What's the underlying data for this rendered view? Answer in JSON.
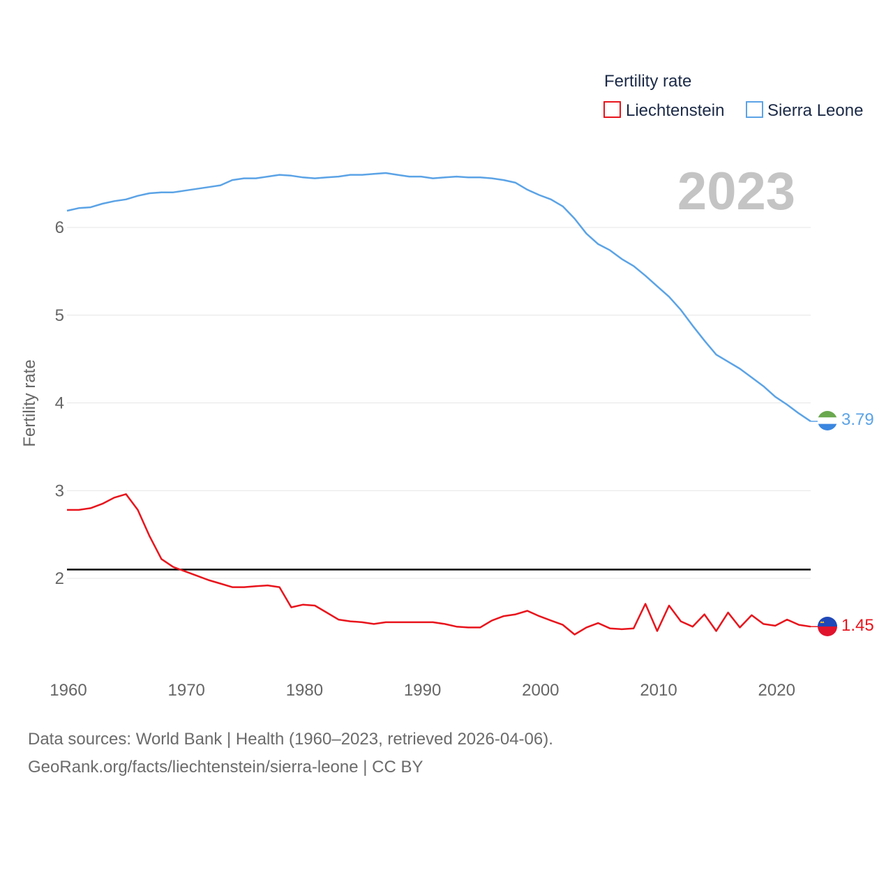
{
  "chart_data": {
    "type": "line",
    "title": "",
    "xlabel": "",
    "ylabel": "Fertility rate",
    "xlim": [
      1960,
      2023
    ],
    "ylim": [
      1.0,
      7.0
    ],
    "yticks": [
      2,
      3,
      4,
      5,
      6
    ],
    "xticks": [
      1960,
      1970,
      1980,
      1990,
      2000,
      2010,
      2020
    ],
    "year_label": "2023",
    "legend": {
      "title": "Fertility rate",
      "position": "top-right"
    },
    "reference_line": {
      "y": 2.1,
      "color": "#000000"
    },
    "x": [
      1960,
      1961,
      1962,
      1963,
      1964,
      1965,
      1966,
      1967,
      1968,
      1969,
      1970,
      1971,
      1972,
      1973,
      1974,
      1975,
      1976,
      1977,
      1978,
      1979,
      1980,
      1981,
      1982,
      1983,
      1984,
      1985,
      1986,
      1987,
      1988,
      1989,
      1990,
      1991,
      1992,
      1993,
      1994,
      1995,
      1996,
      1997,
      1998,
      1999,
      2000,
      2001,
      2002,
      2003,
      2004,
      2005,
      2006,
      2007,
      2008,
      2009,
      2010,
      2011,
      2012,
      2013,
      2014,
      2015,
      2016,
      2017,
      2018,
      2019,
      2020,
      2021,
      2022,
      2023
    ],
    "series": [
      {
        "name": "Liechtenstein",
        "color": "#e8141c",
        "end_label": "1.45",
        "values": [
          2.78,
          2.78,
          2.8,
          2.85,
          2.92,
          2.96,
          2.78,
          2.48,
          2.22,
          2.13,
          2.08,
          2.03,
          1.98,
          1.94,
          1.9,
          1.9,
          1.91,
          1.92,
          1.9,
          1.67,
          1.7,
          1.69,
          1.61,
          1.53,
          1.51,
          1.5,
          1.48,
          1.5,
          1.5,
          1.5,
          1.5,
          1.5,
          1.48,
          1.45,
          1.44,
          1.44,
          1.52,
          1.57,
          1.59,
          1.63,
          1.57,
          1.52,
          1.47,
          1.36,
          1.44,
          1.49,
          1.43,
          1.42,
          1.43,
          1.71,
          1.4,
          1.69,
          1.51,
          1.45,
          1.59,
          1.4,
          1.61,
          1.44,
          1.58,
          1.48,
          1.46,
          1.53,
          1.47,
          1.45
        ]
      },
      {
        "name": "Sierra Leone",
        "color": "#5ba3e6",
        "end_label": "3.79",
        "values": [
          6.19,
          6.22,
          6.23,
          6.27,
          6.3,
          6.32,
          6.36,
          6.39,
          6.4,
          6.4,
          6.42,
          6.44,
          6.46,
          6.48,
          6.54,
          6.56,
          6.56,
          6.58,
          6.6,
          6.59,
          6.57,
          6.56,
          6.57,
          6.58,
          6.6,
          6.6,
          6.61,
          6.62,
          6.6,
          6.58,
          6.58,
          6.56,
          6.57,
          6.58,
          6.57,
          6.57,
          6.56,
          6.54,
          6.51,
          6.43,
          6.37,
          6.32,
          6.24,
          6.1,
          5.93,
          5.81,
          5.74,
          5.64,
          5.56,
          5.45,
          5.33,
          5.21,
          5.06,
          4.88,
          4.71,
          4.55,
          4.47,
          4.39,
          4.29,
          4.19,
          4.07,
          3.98,
          3.88,
          3.79
        ]
      }
    ]
  },
  "footer": {
    "line1": "Data sources: World Bank | Health (1960–2023, retrieved 2026-04-06).",
    "line2": "GeoRank.org/facts/liechtenstein/sierra-leone | CC BY"
  }
}
